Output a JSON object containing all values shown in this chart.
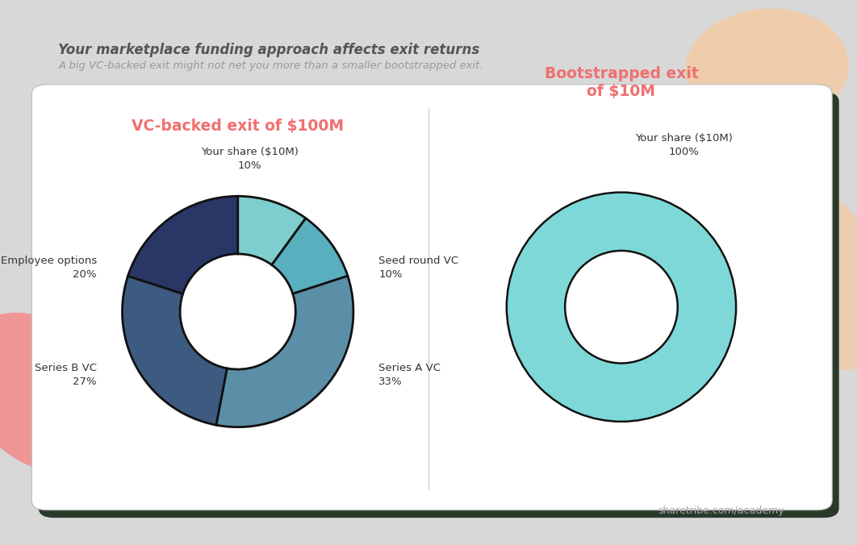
{
  "title": "Your marketplace funding approach affects exit returns",
  "subtitle": "A big VC-backed exit might not net you more than a smaller bootstrapped exit.",
  "title_color": "#555555",
  "subtitle_color": "#999999",
  "bg_outer": "#d8d8d8",
  "bg_card": "#ffffff",
  "dark_card_color": "#2a3a2a",
  "card_border_color": "#cccccc",
  "chart1_title": "VC-backed exit of $100M",
  "chart1_title_color": "#f07070",
  "chart1_slices": [
    10,
    10,
    33,
    27,
    20
  ],
  "chart1_colors": [
    "#7ecece",
    "#5aafbf",
    "#5b8fa8",
    "#3d5a80",
    "#293666"
  ],
  "chart1_label_lines": [
    [
      "Your share ($10M)",
      "10%"
    ],
    [
      "Seed round VC",
      "10%"
    ],
    [
      "Series A VC",
      "33%"
    ],
    [
      "Series B VC",
      "27%"
    ],
    [
      "Employee options",
      "20%"
    ]
  ],
  "chart2_title": "Bootstrapped exit\nof $10M",
  "chart2_title_color": "#f07070",
  "chart2_slices": [
    100
  ],
  "chart2_colors": [
    "#7ed8d8"
  ],
  "chart2_label_lines": [
    [
      "Your share ($10M)",
      "100%"
    ]
  ],
  "footer_text": "sharetribe.com/academy",
  "footer_color": "#aaaaaa",
  "pink_blob_color": "#f28b8b",
  "peach_blob_color": "#f5c9a0"
}
